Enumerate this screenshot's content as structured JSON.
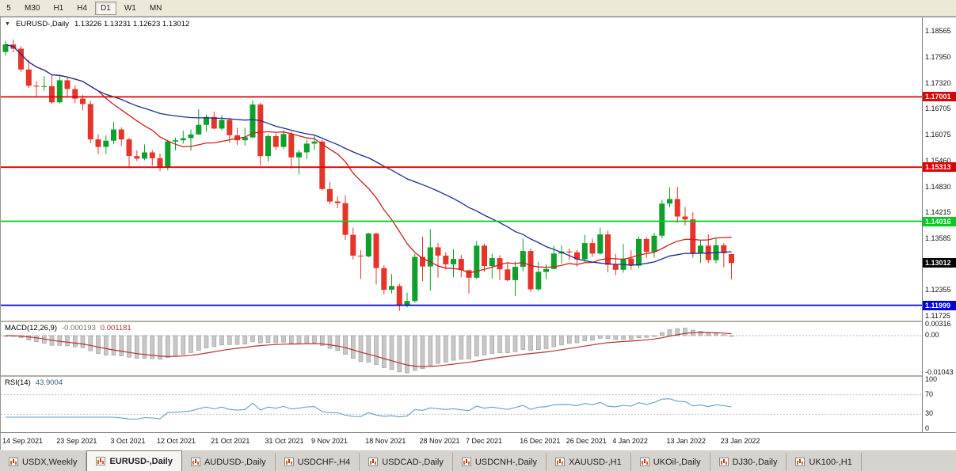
{
  "icons": {
    "symbol_dropdown": "▼"
  },
  "toolbar": {
    "timeframes": [
      "5",
      "M30",
      "H1",
      "H4",
      "D1",
      "W1",
      "MN"
    ],
    "active_timeframe": "D1"
  },
  "chart_header": {
    "symbol": "EURUSD-,Daily",
    "ohlc": "1.13226 1.13231 1.12623 1.13012"
  },
  "price_axis": {
    "labels": [
      "1.18565",
      "1.17950",
      "1.17320",
      "1.16705",
      "1.16075",
      "1.15460",
      "1.14830",
      "1.14215",
      "1.13585",
      "1.12970",
      "1.12355",
      "1.11725"
    ],
    "current_price": "1.13012"
  },
  "macd_panel": {
    "title": "MACD(12,26,9)",
    "value_main": "-0.000193",
    "value_signal": "0.001181",
    "axis_labels": [
      "0.00316",
      "0.00",
      "-0.01043"
    ]
  },
  "rsi_panel": {
    "title": "RSI(14)",
    "value": "43.9004",
    "axis_labels": [
      "100",
      "70",
      "30",
      "0"
    ],
    "levels": [
      70,
      30
    ]
  },
  "date_axis": {
    "labels": [
      "14 Sep 2021",
      "23 Sep 2021",
      "3 Oct 2021",
      "12 Oct 2021",
      "21 Oct 2021",
      "31 Oct 2021",
      "9 Nov 2021",
      "18 Nov 2021",
      "28 Nov 2021",
      "7 Dec 2021",
      "16 Dec 2021",
      "26 Dec 2021",
      "4 Jan 2022",
      "13 Jan 2022",
      "23 Jan 2022"
    ],
    "candle_indices": [
      0,
      7,
      14,
      20,
      27,
      34,
      40,
      47,
      54,
      60,
      67,
      73,
      79,
      86,
      93
    ]
  },
  "tabs": {
    "items": [
      "USDX,Weekly",
      "EURUSD-,Daily",
      "AUDUSD-,Daily",
      "USDCHF-,H4",
      "USDCAD-,Daily",
      "USDCNH-,Daily",
      "XAUUSD-,H1",
      "UKOil-,Daily",
      "DJ30-,Daily",
      "UK100-,H1"
    ],
    "active": "EURUSD-,Daily"
  },
  "chart_data": {
    "type": "candlestick",
    "symbol": "EURUSD",
    "timeframe": "Daily",
    "price_scale": {
      "top": 1.1891,
      "bottom": 1.1163
    },
    "current_price": 1.13012,
    "horizontal_lines": [
      {
        "price": 1.17001,
        "color": "#dd0202"
      },
      {
        "price": 1.15313,
        "color": "#dd0202"
      },
      {
        "price": 1.14016,
        "color": "#00cc22"
      },
      {
        "price": 1.11999,
        "color": "#0202dd"
      }
    ],
    "moving_averages": [
      {
        "period": 13,
        "color": "#cc1f1f"
      },
      {
        "period": 34,
        "color": "#1a2f8f"
      }
    ],
    "indicators": {
      "macd": {
        "fast": 12,
        "slow": 26,
        "signal": 9,
        "main": -0.000193,
        "signal_value": 0.001181
      },
      "rsi": {
        "period": 14,
        "value": 43.9004
      }
    },
    "colors": {
      "up": "#0fa02c",
      "down": "#e5352b",
      "macd_hist": "#c8c8c8",
      "macd_hist_stroke": "#989898",
      "macd_signal": "#b83232",
      "rsi_line": "#63a0c8",
      "current_tag_bg": "#000000"
    },
    "candles": [
      [
        1.1808,
        1.1835,
        1.1799,
        1.1826
      ],
      [
        1.1826,
        1.1838,
        1.1807,
        1.1816
      ],
      [
        1.1816,
        1.1822,
        1.176,
        1.1766
      ],
      [
        1.1766,
        1.1789,
        1.1722,
        1.1727
      ],
      [
        1.1727,
        1.1738,
        1.17,
        1.1725
      ],
      [
        1.1725,
        1.175,
        1.1715,
        1.1726
      ],
      [
        1.1726,
        1.1755,
        1.1683,
        1.1687
      ],
      [
        1.1687,
        1.175,
        1.1684,
        1.174
      ],
      [
        1.174,
        1.1748,
        1.1701,
        1.1719
      ],
      [
        1.1719,
        1.1728,
        1.1685,
        1.1696
      ],
      [
        1.1696,
        1.1705,
        1.1668,
        1.1683
      ],
      [
        1.1683,
        1.169,
        1.1589,
        1.1598
      ],
      [
        1.1598,
        1.161,
        1.1563,
        1.158
      ],
      [
        1.158,
        1.1608,
        1.1563,
        1.1595
      ],
      [
        1.1595,
        1.164,
        1.1587,
        1.1622
      ],
      [
        1.1622,
        1.1627,
        1.1582,
        1.1598
      ],
      [
        1.1598,
        1.1602,
        1.1529,
        1.1558
      ],
      [
        1.1558,
        1.1572,
        1.1546,
        1.1552
      ],
      [
        1.1552,
        1.1586,
        1.1548,
        1.1567
      ],
      [
        1.1567,
        1.1572,
        1.1535,
        1.1553
      ],
      [
        1.1553,
        1.1564,
        1.1522,
        1.153
      ],
      [
        1.153,
        1.1597,
        1.1524,
        1.1593
      ],
      [
        1.1593,
        1.1602,
        1.1572,
        1.1596
      ],
      [
        1.1596,
        1.1619,
        1.1588,
        1.1601
      ],
      [
        1.1601,
        1.1622,
        1.1571,
        1.161
      ],
      [
        1.161,
        1.167,
        1.1609,
        1.1633
      ],
      [
        1.1633,
        1.1658,
        1.1617,
        1.1652
      ],
      [
        1.1652,
        1.1665,
        1.1622,
        1.1624
      ],
      [
        1.1624,
        1.1656,
        1.162,
        1.1645
      ],
      [
        1.1645,
        1.165,
        1.159,
        1.1608
      ],
      [
        1.1608,
        1.1626,
        1.1585,
        1.1596
      ],
      [
        1.1596,
        1.1626,
        1.1583,
        1.1603
      ],
      [
        1.1603,
        1.1692,
        1.1601,
        1.1682
      ],
      [
        1.1682,
        1.1686,
        1.1535,
        1.1558
      ],
      [
        1.1558,
        1.161,
        1.1545,
        1.1606
      ],
      [
        1.1606,
        1.1613,
        1.1572,
        1.158
      ],
      [
        1.158,
        1.162,
        1.1575,
        1.1611
      ],
      [
        1.1611,
        1.1617,
        1.1528,
        1.1555
      ],
      [
        1.1555,
        1.1573,
        1.1514,
        1.1567
      ],
      [
        1.1567,
        1.1598,
        1.1551,
        1.1588
      ],
      [
        1.1588,
        1.1609,
        1.1572,
        1.1593
      ],
      [
        1.1593,
        1.1597,
        1.1475,
        1.1479
      ],
      [
        1.1479,
        1.1495,
        1.1443,
        1.1449
      ],
      [
        1.1449,
        1.1461,
        1.1433,
        1.1445
      ],
      [
        1.1445,
        1.1464,
        1.1357,
        1.1369
      ],
      [
        1.1369,
        1.1386,
        1.131,
        1.1319
      ],
      [
        1.1319,
        1.1332,
        1.1263,
        1.1317
      ],
      [
        1.1317,
        1.1374,
        1.1315,
        1.1372
      ],
      [
        1.1372,
        1.1374,
        1.125,
        1.1289
      ],
      [
        1.1289,
        1.1296,
        1.1226,
        1.1237
      ],
      [
        1.1237,
        1.1275,
        1.1228,
        1.1246
      ],
      [
        1.1246,
        1.1252,
        1.1186,
        1.1199
      ],
      [
        1.1199,
        1.123,
        1.1195,
        1.121
      ],
      [
        1.121,
        1.1323,
        1.1206,
        1.1316
      ],
      [
        1.1316,
        1.1365,
        1.1258,
        1.1293
      ],
      [
        1.1293,
        1.1383,
        1.1235,
        1.1339
      ],
      [
        1.1339,
        1.1349,
        1.1266,
        1.1319
      ],
      [
        1.1319,
        1.1327,
        1.1286,
        1.1298
      ],
      [
        1.1298,
        1.1334,
        1.1267,
        1.1311
      ],
      [
        1.1311,
        1.1321,
        1.1267,
        1.1284
      ],
      [
        1.1284,
        1.1285,
        1.1228,
        1.1266
      ],
      [
        1.1266,
        1.1354,
        1.1263,
        1.1343
      ],
      [
        1.1343,
        1.1348,
        1.128,
        1.1294
      ],
      [
        1.1294,
        1.1324,
        1.1264,
        1.1313
      ],
      [
        1.1313,
        1.132,
        1.126,
        1.1286
      ],
      [
        1.1286,
        1.1303,
        1.1257,
        1.126
      ],
      [
        1.126,
        1.1304,
        1.1222,
        1.1292
      ],
      [
        1.1292,
        1.136,
        1.1281,
        1.133
      ],
      [
        1.133,
        1.1336,
        1.1232,
        1.1238
      ],
      [
        1.1238,
        1.1304,
        1.1234,
        1.128
      ],
      [
        1.128,
        1.1298,
        1.1262,
        1.1287
      ],
      [
        1.1287,
        1.1343,
        1.1286,
        1.1324
      ],
      [
        1.1324,
        1.1344,
        1.13,
        1.1329
      ],
      [
        1.1329,
        1.1336,
        1.1308,
        1.1327
      ],
      [
        1.1327,
        1.1333,
        1.1292,
        1.131
      ],
      [
        1.131,
        1.1369,
        1.1303,
        1.1349
      ],
      [
        1.1349,
        1.136,
        1.1316,
        1.1324
      ],
      [
        1.1324,
        1.1386,
        1.1321,
        1.137
      ],
      [
        1.137,
        1.1379,
        1.1279,
        1.1297
      ],
      [
        1.1297,
        1.1323,
        1.1272,
        1.1285
      ],
      [
        1.1285,
        1.1347,
        1.1278,
        1.1312
      ],
      [
        1.1312,
        1.1332,
        1.1285,
        1.1295
      ],
      [
        1.1295,
        1.1365,
        1.1289,
        1.1359
      ],
      [
        1.1359,
        1.1363,
        1.1313,
        1.1328
      ],
      [
        1.1328,
        1.1374,
        1.1314,
        1.1367
      ],
      [
        1.1367,
        1.1453,
        1.1361,
        1.1444
      ],
      [
        1.1444,
        1.1483,
        1.1435,
        1.1455
      ],
      [
        1.1455,
        1.1484,
        1.1398,
        1.1413
      ],
      [
        1.1413,
        1.1436,
        1.1392,
        1.1406
      ],
      [
        1.1406,
        1.1423,
        1.1314,
        1.1325
      ],
      [
        1.1325,
        1.1357,
        1.1302,
        1.1343
      ],
      [
        1.1343,
        1.137,
        1.1301,
        1.1308
      ],
      [
        1.1308,
        1.136,
        1.13,
        1.1344
      ],
      [
        1.1344,
        1.1349,
        1.1291,
        1.1325
      ],
      [
        1.13226,
        1.13231,
        1.12623,
        1.13012
      ]
    ]
  }
}
